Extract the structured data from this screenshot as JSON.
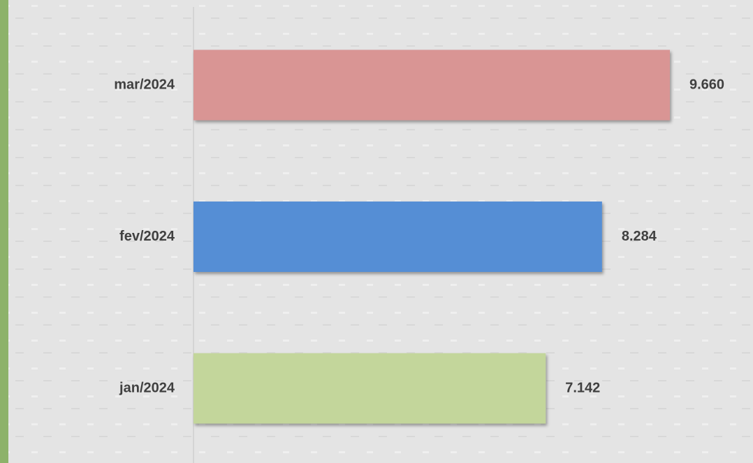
{
  "chart_data": {
    "type": "bar",
    "orientation": "horizontal",
    "categories": [
      "jan/2024",
      "fev/2024",
      "mar/2024"
    ],
    "values": [
      7142,
      8284,
      9660
    ],
    "value_labels": [
      "7.142",
      "8.284",
      "9.660"
    ],
    "colors": [
      "#c3d69b",
      "#558ed5",
      "#d99594"
    ]
  }
}
